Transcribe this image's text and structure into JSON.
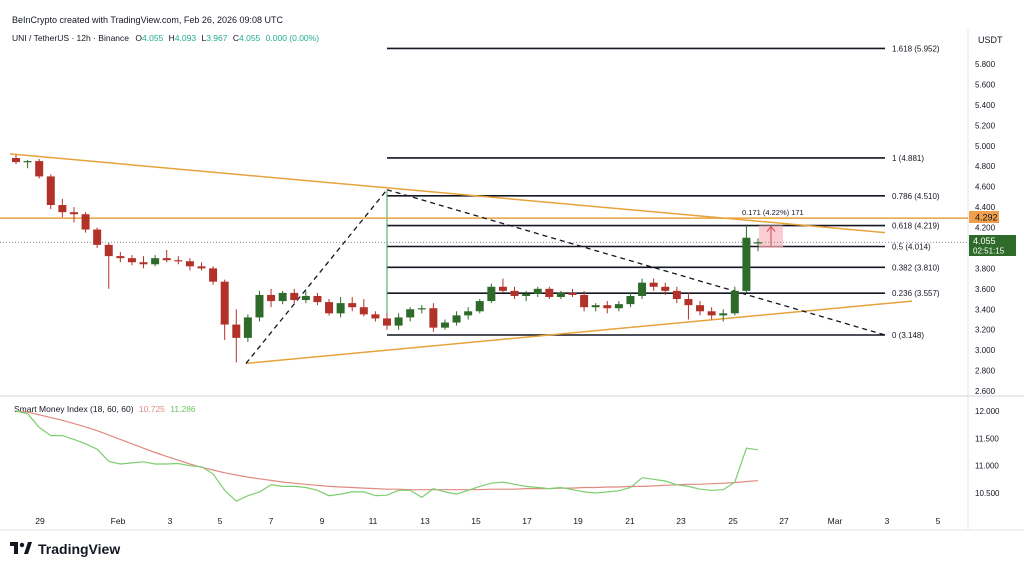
{
  "credit": "BeInCrypto created with TradingView.com, Feb 26, 2026 09:08 UTC",
  "legend": {
    "symbol": "UNI / TetherUS · 12h · Binance",
    "o_label": "O",
    "o": "4.055",
    "h_label": "H",
    "h": "4.093",
    "l_label": "L",
    "l": "3.967",
    "c_label": "C",
    "c": "4.055",
    "change": "0.000 (0.00%)"
  },
  "currency": "USDT",
  "price_labels": {
    "level_tag": "4.292",
    "current_price": "4.055",
    "countdown": "02:51:15"
  },
  "measure_label": "0.171 (4.22%) 171",
  "smi_legend": {
    "name": "Smart Money Index (18, 60, 60)",
    "value1": "10.725",
    "value2": "11.286"
  },
  "logo_text": "TradingView",
  "colors": {
    "up": "#2e6b2b",
    "down": "#b2322a",
    "orange": "#e8a33c",
    "fib": "#131722",
    "smi_green": "#7ccf6e",
    "smi_red": "#e08a80",
    "tag": "#f0a04b",
    "price_tag": "#2e6b2b"
  },
  "chart_data": {
    "type": "candlestick",
    "price_axis": {
      "ticks": [
        "5.800",
        "5.600",
        "5.400",
        "5.200",
        "5.000",
        "4.800",
        "4.600",
        "4.400",
        "4.200",
        "4.000",
        "3.800",
        "3.600",
        "3.400",
        "3.200",
        "3.000",
        "2.800",
        "2.600"
      ]
    },
    "smi_axis": {
      "ticks": [
        "12.000",
        "11.500",
        "11.000",
        "10.500"
      ]
    },
    "x_ticks": [
      "29",
      "Feb",
      "3",
      "5",
      "7",
      "9",
      "11",
      "13",
      "15",
      "17",
      "19",
      "21",
      "23",
      "25",
      "27",
      "Mar",
      "3",
      "5"
    ],
    "candles": [
      {
        "o": 4.88,
        "h": 4.91,
        "l": 4.82,
        "c": 4.84
      },
      {
        "o": 4.84,
        "h": 4.86,
        "l": 4.78,
        "c": 4.85
      },
      {
        "o": 4.85,
        "h": 4.87,
        "l": 4.68,
        "c": 4.7
      },
      {
        "o": 4.7,
        "h": 4.72,
        "l": 4.38,
        "c": 4.42
      },
      {
        "o": 4.42,
        "h": 4.48,
        "l": 4.3,
        "c": 4.35
      },
      {
        "o": 4.35,
        "h": 4.4,
        "l": 4.25,
        "c": 4.33
      },
      {
        "o": 4.33,
        "h": 4.35,
        "l": 4.15,
        "c": 4.18
      },
      {
        "o": 4.18,
        "h": 4.2,
        "l": 4.0,
        "c": 4.03
      },
      {
        "o": 4.03,
        "h": 4.05,
        "l": 3.6,
        "c": 3.92
      },
      {
        "o": 3.92,
        "h": 3.96,
        "l": 3.86,
        "c": 3.9
      },
      {
        "o": 3.9,
        "h": 3.93,
        "l": 3.83,
        "c": 3.86
      },
      {
        "o": 3.86,
        "h": 3.92,
        "l": 3.8,
        "c": 3.84
      },
      {
        "o": 3.84,
        "h": 3.93,
        "l": 3.82,
        "c": 3.9
      },
      {
        "o": 3.9,
        "h": 3.98,
        "l": 3.86,
        "c": 3.88
      },
      {
        "o": 3.88,
        "h": 3.92,
        "l": 3.84,
        "c": 3.87
      },
      {
        "o": 3.87,
        "h": 3.9,
        "l": 3.78,
        "c": 3.82
      },
      {
        "o": 3.82,
        "h": 3.86,
        "l": 3.78,
        "c": 3.8
      },
      {
        "o": 3.8,
        "h": 3.82,
        "l": 3.64,
        "c": 3.67
      },
      {
        "o": 3.67,
        "h": 3.69,
        "l": 3.1,
        "c": 3.25
      },
      {
        "o": 3.25,
        "h": 3.4,
        "l": 2.88,
        "c": 3.12
      },
      {
        "o": 3.12,
        "h": 3.35,
        "l": 3.08,
        "c": 3.32
      },
      {
        "o": 3.32,
        "h": 3.58,
        "l": 3.28,
        "c": 3.54
      },
      {
        "o": 3.54,
        "h": 3.6,
        "l": 3.42,
        "c": 3.48
      },
      {
        "o": 3.48,
        "h": 3.58,
        "l": 3.45,
        "c": 3.56
      },
      {
        "o": 3.56,
        "h": 3.6,
        "l": 3.46,
        "c": 3.49
      },
      {
        "o": 3.49,
        "h": 3.58,
        "l": 3.46,
        "c": 3.53
      },
      {
        "o": 3.53,
        "h": 3.56,
        "l": 3.44,
        "c": 3.47
      },
      {
        "o": 3.47,
        "h": 3.5,
        "l": 3.34,
        "c": 3.36
      },
      {
        "o": 3.36,
        "h": 3.52,
        "l": 3.32,
        "c": 3.46
      },
      {
        "o": 3.46,
        "h": 3.52,
        "l": 3.38,
        "c": 3.42
      },
      {
        "o": 3.42,
        "h": 3.5,
        "l": 3.33,
        "c": 3.35
      },
      {
        "o": 3.35,
        "h": 3.38,
        "l": 3.28,
        "c": 3.31
      },
      {
        "o": 3.31,
        "h": 3.36,
        "l": 3.2,
        "c": 3.24
      },
      {
        "o": 3.24,
        "h": 3.36,
        "l": 3.2,
        "c": 3.32
      },
      {
        "o": 3.32,
        "h": 3.42,
        "l": 3.28,
        "c": 3.4
      },
      {
        "o": 3.4,
        "h": 3.44,
        "l": 3.36,
        "c": 3.41
      },
      {
        "o": 3.41,
        "h": 3.46,
        "l": 3.18,
        "c": 3.22
      },
      {
        "o": 3.22,
        "h": 3.3,
        "l": 3.2,
        "c": 3.27
      },
      {
        "o": 3.27,
        "h": 3.38,
        "l": 3.24,
        "c": 3.34
      },
      {
        "o": 3.34,
        "h": 3.42,
        "l": 3.3,
        "c": 3.38
      },
      {
        "o": 3.38,
        "h": 3.5,
        "l": 3.36,
        "c": 3.48
      },
      {
        "o": 3.48,
        "h": 3.65,
        "l": 3.46,
        "c": 3.62
      },
      {
        "o": 3.62,
        "h": 3.7,
        "l": 3.56,
        "c": 3.58
      },
      {
        "o": 3.58,
        "h": 3.62,
        "l": 3.5,
        "c": 3.53
      },
      {
        "o": 3.53,
        "h": 3.58,
        "l": 3.48,
        "c": 3.55
      },
      {
        "o": 3.55,
        "h": 3.62,
        "l": 3.52,
        "c": 3.6
      },
      {
        "o": 3.6,
        "h": 3.62,
        "l": 3.5,
        "c": 3.52
      },
      {
        "o": 3.52,
        "h": 3.58,
        "l": 3.5,
        "c": 3.56
      },
      {
        "o": 3.56,
        "h": 3.6,
        "l": 3.52,
        "c": 3.54
      },
      {
        "o": 3.54,
        "h": 3.58,
        "l": 3.38,
        "c": 3.42
      },
      {
        "o": 3.42,
        "h": 3.46,
        "l": 3.38,
        "c": 3.44
      },
      {
        "o": 3.44,
        "h": 3.48,
        "l": 3.36,
        "c": 3.41
      },
      {
        "o": 3.41,
        "h": 3.48,
        "l": 3.38,
        "c": 3.45
      },
      {
        "o": 3.45,
        "h": 3.56,
        "l": 3.42,
        "c": 3.53
      },
      {
        "o": 3.53,
        "h": 3.7,
        "l": 3.5,
        "c": 3.66
      },
      {
        "o": 3.66,
        "h": 3.7,
        "l": 3.58,
        "c": 3.62
      },
      {
        "o": 3.62,
        "h": 3.66,
        "l": 3.54,
        "c": 3.58
      },
      {
        "o": 3.58,
        "h": 3.62,
        "l": 3.46,
        "c": 3.5
      },
      {
        "o": 3.5,
        "h": 3.56,
        "l": 3.3,
        "c": 3.44
      },
      {
        "o": 3.44,
        "h": 3.48,
        "l": 3.34,
        "c": 3.38
      },
      {
        "o": 3.38,
        "h": 3.42,
        "l": 3.3,
        "c": 3.34
      },
      {
        "o": 3.34,
        "h": 3.4,
        "l": 3.28,
        "c": 3.36
      },
      {
        "o": 3.36,
        "h": 3.62,
        "l": 3.34,
        "c": 3.58
      },
      {
        "o": 3.58,
        "h": 4.23,
        "l": 3.56,
        "c": 4.1
      },
      {
        "o": 4.055,
        "h": 4.093,
        "l": 3.967,
        "c": 4.055
      }
    ],
    "fib_levels": [
      {
        "ratio": "1.618",
        "value": 5.952,
        "label": "1.618 (5.952)"
      },
      {
        "ratio": "1",
        "value": 4.881,
        "label": "1 (4.881)"
      },
      {
        "ratio": "0.786",
        "value": 4.51,
        "label": "0.786 (4.510)"
      },
      {
        "ratio": "0.618",
        "value": 4.219,
        "label": "0.618 (4.219)"
      },
      {
        "ratio": "0.5",
        "value": 4.014,
        "label": "0.5 (4.014)"
      },
      {
        "ratio": "0.382",
        "value": 3.81,
        "label": "0.382 (3.810)"
      },
      {
        "ratio": "0.236",
        "value": 3.557,
        "label": "0.236 (3.557)"
      },
      {
        "ratio": "0",
        "value": 3.148,
        "label": "0 (3.148)"
      }
    ],
    "horizontal_level": 4.292,
    "smi_series": {
      "green": [
        12.0,
        11.95,
        11.7,
        11.55,
        11.55,
        11.48,
        11.4,
        11.3,
        11.08,
        11.03,
        11.05,
        11.07,
        11.03,
        11.03,
        11.04,
        11.0,
        10.98,
        10.85,
        10.55,
        10.35,
        10.45,
        10.52,
        10.65,
        10.62,
        10.62,
        10.6,
        10.55,
        10.45,
        10.48,
        10.52,
        10.52,
        10.45,
        10.46,
        10.55,
        10.55,
        10.42,
        10.58,
        10.52,
        10.48,
        10.55,
        10.62,
        10.68,
        10.7,
        10.66,
        10.62,
        10.6,
        10.58,
        10.6,
        10.56,
        10.52,
        10.5,
        10.52,
        10.54,
        10.6,
        10.78,
        10.75,
        10.72,
        10.65,
        10.62,
        10.57,
        10.55,
        10.56,
        10.7,
        11.32,
        11.29
      ],
      "red": [
        12.0,
        11.98,
        11.93,
        11.88,
        11.83,
        11.77,
        11.71,
        11.64,
        11.56,
        11.48,
        11.4,
        11.32,
        11.24,
        11.17,
        11.1,
        11.03,
        10.97,
        10.92,
        10.87,
        10.83,
        10.79,
        10.76,
        10.73,
        10.7,
        10.68,
        10.66,
        10.64,
        10.62,
        10.61,
        10.6,
        10.59,
        10.58,
        10.57,
        10.57,
        10.56,
        10.56,
        10.56,
        10.56,
        10.56,
        10.56,
        10.56,
        10.57,
        10.57,
        10.57,
        10.58,
        10.58,
        10.58,
        10.59,
        10.59,
        10.6,
        10.6,
        10.61,
        10.61,
        10.62,
        10.62,
        10.63,
        10.64,
        10.65,
        10.66,
        10.66,
        10.67,
        10.68,
        10.69,
        10.71,
        10.725
      ]
    }
  }
}
